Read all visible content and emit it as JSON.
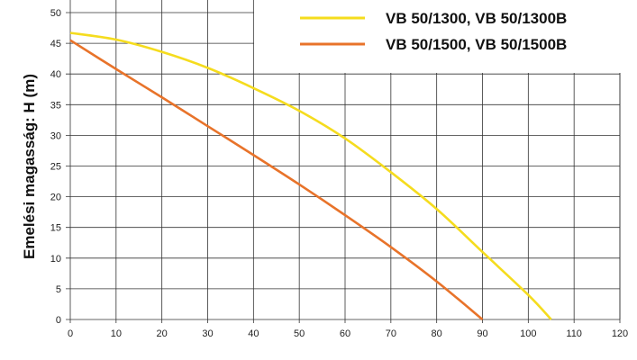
{
  "chart_data": {
    "type": "line",
    "title": "",
    "xlabel": "",
    "ylabel": "Emelési magasság: H (m)",
    "xlim": [
      0,
      120
    ],
    "ylim": [
      0,
      50
    ],
    "xticks": [
      0,
      10,
      20,
      30,
      40,
      50,
      60,
      70,
      80,
      90,
      100,
      110,
      120
    ],
    "yticks": [
      0,
      5,
      10,
      15,
      20,
      25,
      30,
      35,
      40,
      45,
      50
    ],
    "grid": true,
    "legend_position": "top-right",
    "series": [
      {
        "name": "VB 50/1300, VB 50/1300B",
        "color": "#f5dc1e",
        "x": [
          0,
          10,
          20,
          30,
          40,
          50,
          60,
          70,
          80,
          90,
          100,
          105
        ],
        "y": [
          46.7,
          45.6,
          43.6,
          41,
          37.7,
          34,
          29.5,
          24,
          18,
          11,
          4,
          0
        ]
      },
      {
        "name": "VB 50/1500, VB 50/1500B",
        "color": "#e8732a",
        "x": [
          0,
          10,
          20,
          30,
          40,
          50,
          60,
          70,
          80,
          90
        ],
        "y": [
          45.5,
          40.8,
          36.2,
          31.5,
          26.8,
          22,
          17,
          11.8,
          6.2,
          0
        ]
      }
    ]
  }
}
